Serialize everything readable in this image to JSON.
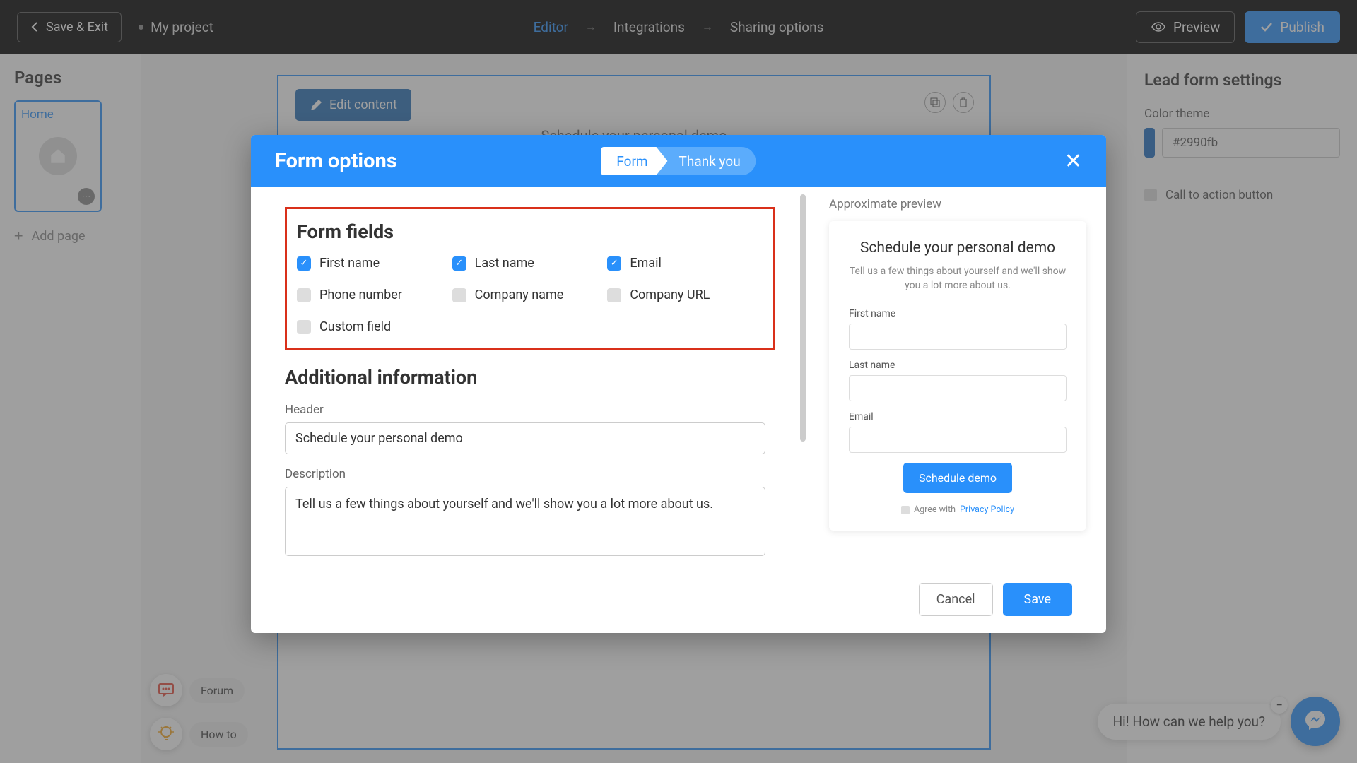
{
  "topbar": {
    "save_exit": "Save & Exit",
    "project": "My project",
    "nav": {
      "editor": "Editor",
      "integrations": "Integrations",
      "sharing": "Sharing options"
    },
    "preview": "Preview",
    "publish": "Publish"
  },
  "sidebar_left": {
    "title": "Pages",
    "page_label": "Home",
    "add_page": "Add page"
  },
  "canvas": {
    "edit_btn": "Edit content",
    "heading": "Schedule your personal demo"
  },
  "sidebar_right": {
    "title": "Lead form settings",
    "color_label": "Color theme",
    "color_value": "#2990fb",
    "cta": "Call to action button"
  },
  "help": {
    "forum": "Forum",
    "howto": "How to"
  },
  "chat": {
    "msg": "Hi! How can we help you?"
  },
  "modal": {
    "title": "Form options",
    "tab_form": "Form",
    "tab_ty": "Thank you",
    "form_fields": {
      "title": "Form fields",
      "items": [
        {
          "label": "First name",
          "checked": true
        },
        {
          "label": "Last name",
          "checked": true
        },
        {
          "label": "Email",
          "checked": true
        },
        {
          "label": "Phone number",
          "checked": false
        },
        {
          "label": "Company name",
          "checked": false
        },
        {
          "label": "Company URL",
          "checked": false
        },
        {
          "label": "Custom field",
          "checked": false
        }
      ]
    },
    "additional": {
      "title": "Additional information",
      "header_label": "Header",
      "header_value": "Schedule your personal demo",
      "desc_label": "Description",
      "desc_value": "Tell us a few things about yourself and we'll show you a lot more about us."
    },
    "preview": {
      "label": "Approximate preview",
      "title": "Schedule your personal demo",
      "desc": "Tell us a few things about yourself and we'll show you a lot more about us.",
      "f1": "First name",
      "f2": "Last name",
      "f3": "Email",
      "button": "Schedule demo",
      "agree": "Agree with",
      "policy": "Privacy Policy"
    },
    "cancel": "Cancel",
    "save": "Save"
  },
  "colors": {
    "primary": "#2990fb",
    "highlight_border": "#d9301a"
  }
}
